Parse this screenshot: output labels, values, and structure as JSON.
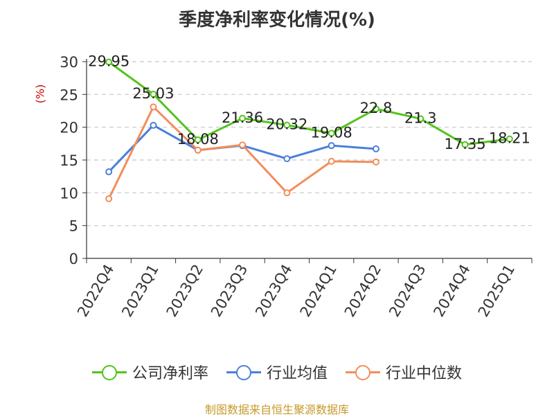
{
  "chart_data": {
    "type": "line",
    "title": "季度净利率变化情况(%)",
    "ylabel": "(%)",
    "categories": [
      "2022Q4",
      "2023Q1",
      "2023Q2",
      "2023Q3",
      "2023Q4",
      "2024Q1",
      "2024Q2",
      "2024Q3",
      "2024Q4",
      "2025Q1"
    ],
    "ylim": [
      0,
      30
    ],
    "yticks": [
      0,
      5,
      10,
      15,
      20,
      25,
      30
    ],
    "grid": true,
    "legend_position": "bottom",
    "series": [
      {
        "name": "公司净利率",
        "color": "#52c41a",
        "values": [
          29.95,
          25.03,
          18.08,
          21.36,
          20.32,
          19.08,
          22.8,
          21.3,
          17.35,
          18.21
        ],
        "labels": [
          "29.95",
          "25.03",
          "18.08",
          "21.36",
          "20.32",
          "19.08",
          "22.8",
          "21.3",
          "17.35",
          "18.21"
        ]
      },
      {
        "name": "行业均值",
        "color": "#4a7fdb",
        "values": [
          13.2,
          20.3,
          16.5,
          17.2,
          15.2,
          17.2,
          16.7,
          null,
          null,
          null
        ]
      },
      {
        "name": "行业中位数",
        "color": "#f28d5c",
        "values": [
          9.1,
          23.1,
          16.5,
          17.3,
          10.0,
          14.8,
          14.7,
          null,
          null,
          null
        ]
      }
    ]
  },
  "footer": "制图数据来自恒生聚源数据库"
}
